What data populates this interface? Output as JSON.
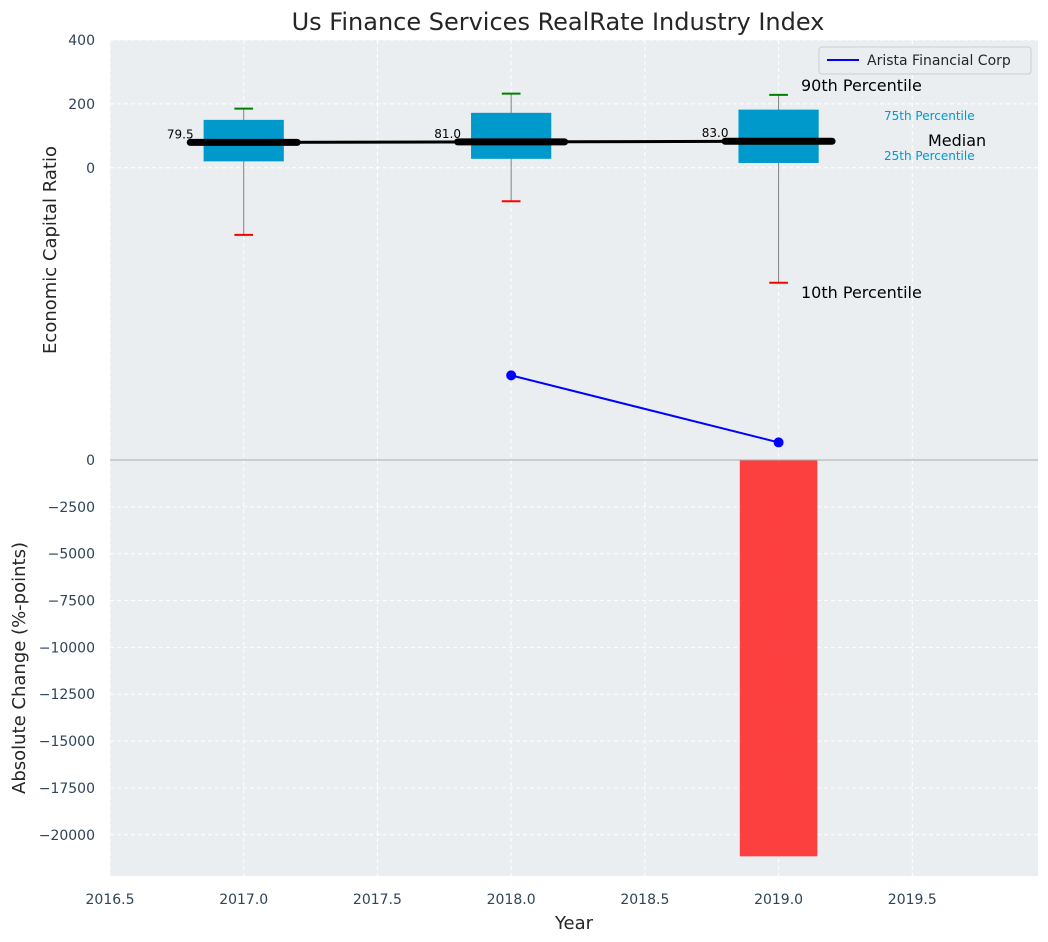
{
  "chart_data": {
    "title": "Us Finance Services RealRate Industry Index",
    "xlabel": "Year",
    "xlim": [
      2016.5,
      2019.97
    ],
    "xticks": [
      2016.5,
      2017.0,
      2017.5,
      2018.0,
      2018.5,
      2019.0,
      2019.5
    ],
    "xtick_labels": [
      "2016.5",
      "2017.0",
      "2017.5",
      "2018.0",
      "2018.5",
      "2019.0",
      "2019.5"
    ],
    "grid": true,
    "top_panel": {
      "type": "box",
      "ylabel": "Economic Capital Ratio",
      "ylim": [
        -915,
        400
      ],
      "yticks": [
        0,
        200,
        400
      ],
      "ytick_labels": [
        "0",
        "200",
        "400"
      ],
      "boxes": [
        {
          "x": 2017.0,
          "p10": -210,
          "p25": 20,
          "median": 79.5,
          "p75": 150,
          "p90": 185,
          "median_label": "79.5"
        },
        {
          "x": 2018.0,
          "p10": -105,
          "p25": 28,
          "median": 81.0,
          "p75": 172,
          "p90": 232,
          "median_label": "81.0"
        },
        {
          "x": 2019.0,
          "p10": -360,
          "p25": 15,
          "median": 83.0,
          "p75": 182,
          "p90": 228,
          "median_label": "83.0"
        }
      ],
      "series": [
        {
          "name": "Arista Financial Corp",
          "x": [
            2017.0,
            2018.0,
            2019.0
          ],
          "values": [
            79.5,
            81.0,
            83.0
          ],
          "color": "#000000"
        }
      ],
      "annotations": {
        "p90": "90th Percentile",
        "p75": "75th Percentile",
        "median": "Median",
        "p25": "25th Percentile",
        "p10": "10th Percentile"
      },
      "legend": {
        "position": "top-right",
        "label": "Arista Financial Corp",
        "color": "#0000ff"
      }
    },
    "company_points": {
      "x": [
        2018.0,
        2019.0
      ],
      "values": [
        -650,
        -860
      ],
      "color": "#0000ff"
    },
    "bottom_panel": {
      "type": "bar",
      "ylabel": "Absolute Change (%-points)",
      "ylim": [
        -22200,
        0
      ],
      "yticks": [
        0,
        -2500,
        -5000,
        -7500,
        -10000,
        -12500,
        -15000,
        -17500,
        -20000
      ],
      "ytick_labels": [
        "0",
        "−2500",
        "−5000",
        "−7500",
        "−10000",
        "−12500",
        "−15000",
        "−17500",
        "−20000"
      ],
      "bars": [
        {
          "x": 2019.0,
          "value": -21150
        }
      ],
      "bar_color": "#ff2020"
    }
  },
  "colors": {
    "background": "#eaeef0",
    "box": "#0099cc",
    "whisker_top": "#008000",
    "whisker_bottom": "#ff0000",
    "median_line": "#000000"
  }
}
